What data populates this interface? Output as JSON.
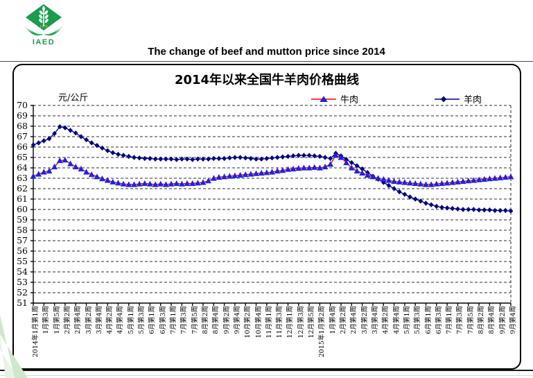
{
  "page": {
    "logo_text": "IAED",
    "header_title": "The change of beef and mutton price since 2014"
  },
  "chart_data": {
    "type": "line",
    "title": "2014年以来全国牛羊肉价格曲线",
    "ylabel": "元/公斤",
    "ylim": [
      51,
      70
    ],
    "y_tick_step": 1,
    "grid": "horizontal-dashed",
    "legend_position": "top-inside",
    "n_points": 91,
    "x_tick_every": 2,
    "x_tick_labels": [
      "2014年1月第1周",
      "1月第3周",
      "1月第5周",
      "2月第2周",
      "2月第4周",
      "3月第2周",
      "3月第4周",
      "4月第2周",
      "4月第4周",
      "5月第1周",
      "5月第3周",
      "6月第1周",
      "6月第3周",
      "7月第1周",
      "7月第3周",
      "7月第5周",
      "8月第2周",
      "8月第4周",
      "9月第2周",
      "9月第4周",
      "10月第2周",
      "10月第4周",
      "11月第1周",
      "11月第3周",
      "12月第1周",
      "12月第3周",
      "12月第5周",
      "2015年1月第2周",
      "1月第4周",
      "2月第2周",
      "2月第4周",
      "3月第2周",
      "3月第4周",
      "4月第2周",
      "4月第4周",
      "5月第1周",
      "5月第3周",
      "6月第1周",
      "6月第3周",
      "7月第1周",
      "7月第3周",
      "7月第5周",
      "8月第2周",
      "8月第4周",
      "9月第2周",
      "9月第4周"
    ],
    "series": [
      {
        "name": "牛肉",
        "marker": "triangle",
        "marker_color": "#2121DF",
        "line_color": "#FF0000",
        "values": [
          63.2,
          63.4,
          63.6,
          63.7,
          64.1,
          64.7,
          64.75,
          64.4,
          64.1,
          63.9,
          63.6,
          63.35,
          63.15,
          62.95,
          62.8,
          62.65,
          62.55,
          62.45,
          62.4,
          62.4,
          62.45,
          62.5,
          62.45,
          62.4,
          62.45,
          62.4,
          62.45,
          62.5,
          62.45,
          62.5,
          62.5,
          62.55,
          62.6,
          62.75,
          63.0,
          63.1,
          63.15,
          63.2,
          63.25,
          63.3,
          63.35,
          63.4,
          63.45,
          63.5,
          63.55,
          63.6,
          63.7,
          63.75,
          63.85,
          63.9,
          63.95,
          64.0,
          64.0,
          64.05,
          64.0,
          64.1,
          64.35,
          65.2,
          65.0,
          64.5,
          64.0,
          63.7,
          63.5,
          63.3,
          63.15,
          63.0,
          62.9,
          62.8,
          62.7,
          62.65,
          62.6,
          62.55,
          62.5,
          62.45,
          62.4,
          62.4,
          62.45,
          62.5,
          62.55,
          62.6,
          62.65,
          62.7,
          62.75,
          62.8,
          62.85,
          62.9,
          62.95,
          63.0,
          63.05,
          63.1,
          63.15
        ]
      },
      {
        "name": "羊肉",
        "marker": "diamond",
        "marker_color": "#00007F",
        "line_color": "#00007F",
        "values": [
          66.2,
          66.4,
          66.6,
          66.8,
          67.3,
          67.95,
          67.85,
          67.6,
          67.35,
          67.0,
          66.7,
          66.4,
          66.15,
          65.9,
          65.65,
          65.45,
          65.3,
          65.2,
          65.1,
          65.0,
          64.95,
          64.9,
          64.9,
          64.85,
          64.85,
          64.85,
          64.85,
          64.8,
          64.85,
          64.85,
          64.8,
          64.85,
          64.85,
          64.85,
          64.9,
          64.9,
          64.9,
          64.95,
          65.0,
          65.0,
          64.95,
          64.9,
          64.85,
          64.85,
          64.9,
          64.95,
          65.0,
          65.05,
          65.1,
          65.15,
          65.2,
          65.2,
          65.2,
          65.15,
          65.1,
          65.0,
          64.9,
          65.4,
          65.15,
          64.8,
          64.5,
          64.2,
          63.9,
          63.55,
          63.2,
          62.9,
          62.6,
          62.3,
          62.0,
          61.7,
          61.45,
          61.2,
          61.0,
          60.8,
          60.6,
          60.45,
          60.3,
          60.2,
          60.15,
          60.1,
          60.05,
          60.0,
          60.0,
          60.0,
          59.95,
          59.95,
          59.95,
          59.9,
          59.9,
          59.9,
          59.85
        ]
      }
    ]
  }
}
